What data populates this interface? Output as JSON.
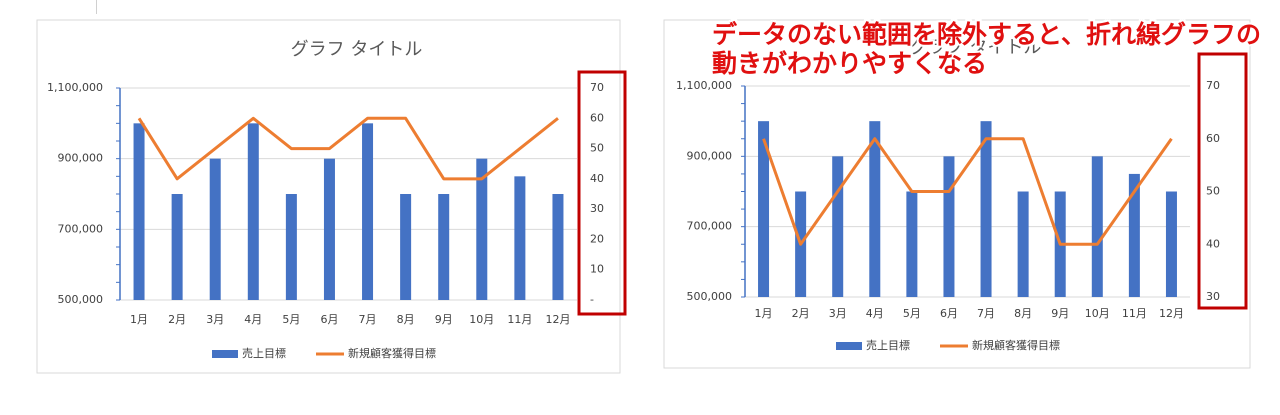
{
  "annotation": {
    "line1": "データのない範囲を除外すると、折れ線グラフの",
    "line2": "動きがわかりやすくなる"
  },
  "colors": {
    "bar": "#4472C4",
    "line": "#ED7D31",
    "highlight": "#C00000",
    "annotation": "#E01010"
  },
  "chart_data": [
    {
      "type": "bar+line",
      "title": "グラフ タイトル",
      "categories": [
        "1月",
        "2月",
        "3月",
        "4月",
        "5月",
        "6月",
        "7月",
        "8月",
        "9月",
        "10月",
        "11月",
        "12月"
      ],
      "series": [
        {
          "name": "売上目標",
          "type": "bar",
          "axis": "left",
          "values": [
            1000000,
            800000,
            900000,
            1000000,
            800000,
            900000,
            1000000,
            800000,
            800000,
            900000,
            850000,
            800000
          ]
        },
        {
          "name": "新規顧客獲得目標",
          "type": "line",
          "axis": "right",
          "values": [
            60,
            40,
            50,
            60,
            50,
            50,
            60,
            60,
            40,
            40,
            50,
            60
          ]
        }
      ],
      "y_left": {
        "range": [
          500000,
          1100000
        ],
        "ticks": [
          "500,000",
          "700,000",
          "900,000",
          "1,100,000"
        ]
      },
      "y_right": {
        "range": [
          0,
          70
        ],
        "ticks": [
          "-",
          "10",
          "20",
          "30",
          "40",
          "50",
          "60",
          "70"
        ]
      },
      "legend": "bottom",
      "grid": true
    },
    {
      "type": "bar+line",
      "title": "グラフ タイトル",
      "categories": [
        "1月",
        "2月",
        "3月",
        "4月",
        "5月",
        "6月",
        "7月",
        "8月",
        "9月",
        "10月",
        "11月",
        "12月"
      ],
      "series": [
        {
          "name": "売上目標",
          "type": "bar",
          "axis": "left",
          "values": [
            1000000,
            800000,
            900000,
            1000000,
            800000,
            900000,
            1000000,
            800000,
            800000,
            900000,
            850000,
            800000
          ]
        },
        {
          "name": "新規顧客獲得目標",
          "type": "line",
          "axis": "right",
          "values": [
            60,
            40,
            50,
            60,
            50,
            50,
            60,
            60,
            40,
            40,
            50,
            60
          ]
        }
      ],
      "y_left": {
        "range": [
          500000,
          1100000
        ],
        "ticks": [
          "500,000",
          "700,000",
          "900,000",
          "1,100,000"
        ]
      },
      "y_right": {
        "range": [
          30,
          70
        ],
        "ticks": [
          "30",
          "40",
          "50",
          "60",
          "70"
        ]
      },
      "legend": "bottom",
      "grid": true
    }
  ]
}
